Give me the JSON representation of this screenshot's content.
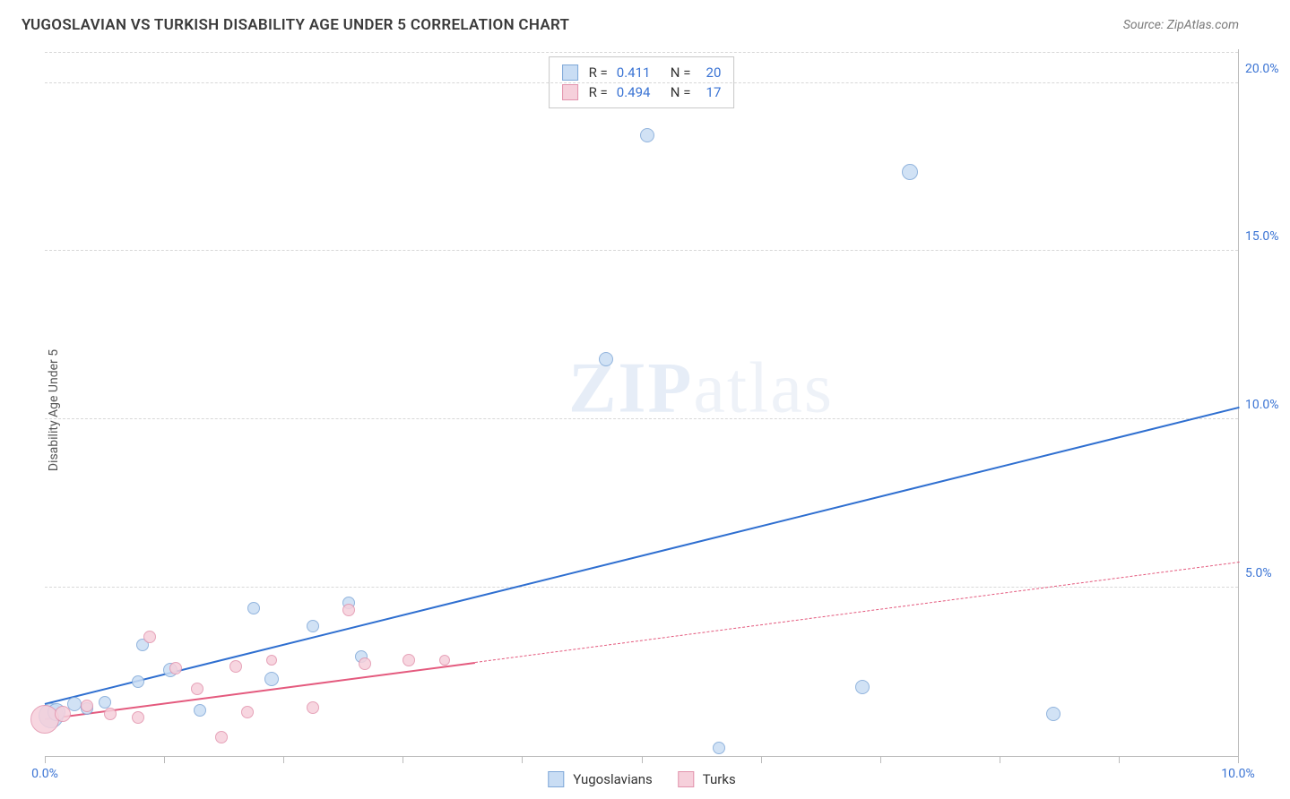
{
  "header": {
    "title": "YUGOSLAVIAN VS TURKISH DISABILITY AGE UNDER 5 CORRELATION CHART",
    "source_prefix": "Source: ",
    "source_name": "ZipAtlas.com"
  },
  "y_axis_label": "Disability Age Under 5",
  "watermark": {
    "bold": "ZIP",
    "rest": "atlas"
  },
  "chart": {
    "type": "scatter",
    "xlim": [
      0,
      10
    ],
    "ylim": [
      0,
      21
    ],
    "x_ticks": [
      0,
      1,
      2,
      3,
      4,
      5,
      6,
      7,
      8,
      9,
      10
    ],
    "x_tick_labels": {
      "0": "0.0%",
      "10": "10.0%"
    },
    "y_ticks": [
      5,
      10,
      15,
      20
    ],
    "y_tick_labels": {
      "5": "5.0%",
      "10": "10.0%",
      "15": "15.0%",
      "20": "20.0%"
    },
    "background_color": "#ffffff",
    "grid_color": "#d8d8d8",
    "axis_label_color": "#3b74d4",
    "series": [
      {
        "name": "Yugoslavians",
        "marker_fill": "#c9ddf4",
        "marker_stroke": "#7fa8d8",
        "line_color": "#2f6fd0",
        "line_width": 2.2,
        "r_value": "0.411",
        "n_value": "20",
        "points": [
          {
            "x": 0.05,
            "y": 1.2,
            "r": 14
          },
          {
            "x": 0.1,
            "y": 1.3,
            "r": 10
          },
          {
            "x": 0.25,
            "y": 1.55,
            "r": 8
          },
          {
            "x": 0.35,
            "y": 1.4,
            "r": 7
          },
          {
            "x": 0.5,
            "y": 1.6,
            "r": 7
          },
          {
            "x": 0.78,
            "y": 2.2,
            "r": 7
          },
          {
            "x": 0.82,
            "y": 3.3,
            "r": 7
          },
          {
            "x": 1.05,
            "y": 2.55,
            "r": 8
          },
          {
            "x": 1.3,
            "y": 1.35,
            "r": 7
          },
          {
            "x": 1.75,
            "y": 4.4,
            "r": 7
          },
          {
            "x": 1.9,
            "y": 2.3,
            "r": 8
          },
          {
            "x": 2.25,
            "y": 3.85,
            "r": 7
          },
          {
            "x": 2.55,
            "y": 4.55,
            "r": 7
          },
          {
            "x": 2.65,
            "y": 2.95,
            "r": 7
          },
          {
            "x": 4.7,
            "y": 11.8,
            "r": 8
          },
          {
            "x": 5.05,
            "y": 18.45,
            "r": 8
          },
          {
            "x": 5.65,
            "y": 0.25,
            "r": 7
          },
          {
            "x": 6.85,
            "y": 2.05,
            "r": 8
          },
          {
            "x": 7.25,
            "y": 17.35,
            "r": 9
          },
          {
            "x": 8.45,
            "y": 1.25,
            "r": 8
          }
        ],
        "trend": {
          "x1": 0,
          "y1": 1.6,
          "x2": 10,
          "y2": 10.4
        },
        "dash_from": null
      },
      {
        "name": "Turks",
        "marker_fill": "#f6d0db",
        "marker_stroke": "#e293ad",
        "line_color": "#e45a7e",
        "line_width": 2,
        "r_value": "0.494",
        "n_value": "17",
        "points": [
          {
            "x": 0.0,
            "y": 1.1,
            "r": 16
          },
          {
            "x": 0.15,
            "y": 1.25,
            "r": 9
          },
          {
            "x": 0.35,
            "y": 1.5,
            "r": 7
          },
          {
            "x": 0.55,
            "y": 1.25,
            "r": 7
          },
          {
            "x": 0.78,
            "y": 1.15,
            "r": 7
          },
          {
            "x": 0.88,
            "y": 3.55,
            "r": 7
          },
          {
            "x": 1.1,
            "y": 2.6,
            "r": 7
          },
          {
            "x": 1.28,
            "y": 2.0,
            "r": 7
          },
          {
            "x": 1.48,
            "y": 0.55,
            "r": 7
          },
          {
            "x": 1.6,
            "y": 2.65,
            "r": 7
          },
          {
            "x": 1.7,
            "y": 1.3,
            "r": 7
          },
          {
            "x": 1.9,
            "y": 2.85,
            "r": 6
          },
          {
            "x": 2.25,
            "y": 1.45,
            "r": 7
          },
          {
            "x": 2.55,
            "y": 4.35,
            "r": 7
          },
          {
            "x": 2.68,
            "y": 2.75,
            "r": 7
          },
          {
            "x": 3.05,
            "y": 2.85,
            "r": 7
          },
          {
            "x": 3.35,
            "y": 2.85,
            "r": 6
          }
        ],
        "trend": {
          "x1": 0,
          "y1": 1.15,
          "x2": 10,
          "y2": 5.8
        },
        "dash_from": 3.6
      }
    ]
  },
  "stat_legend": {
    "r_label": "R =",
    "n_label": "N ="
  },
  "bottom_legend": {
    "items": [
      {
        "label": "Yugoslavians",
        "fill": "#c9ddf4",
        "stroke": "#7fa8d8"
      },
      {
        "label": "Turks",
        "fill": "#f6d0db",
        "stroke": "#e293ad"
      }
    ]
  }
}
